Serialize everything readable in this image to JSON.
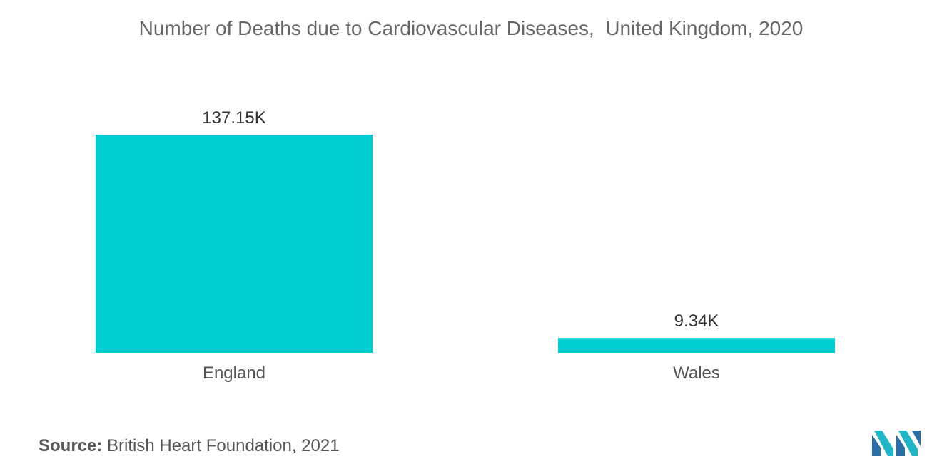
{
  "chart_data": {
    "type": "bar",
    "title": "Number of Deaths due to Cardiovascular Diseases,  United Kingdom, 2020",
    "categories": [
      "England",
      "Wales"
    ],
    "values": [
      137.15,
      9.34
    ],
    "value_labels": [
      "137.15K",
      "9.34K"
    ],
    "unit_suffix": "K",
    "ylim": [
      0,
      137.15
    ],
    "grid": false,
    "legend": "none",
    "bar_color": "#00CED1"
  },
  "source": {
    "label": "Source:",
    "text": "British Heart Foundation, 2021"
  },
  "logo": {
    "icon": "mordor-intelligence-logo",
    "colors": [
      "#1FB6C7",
      "#2A6FA8"
    ]
  }
}
